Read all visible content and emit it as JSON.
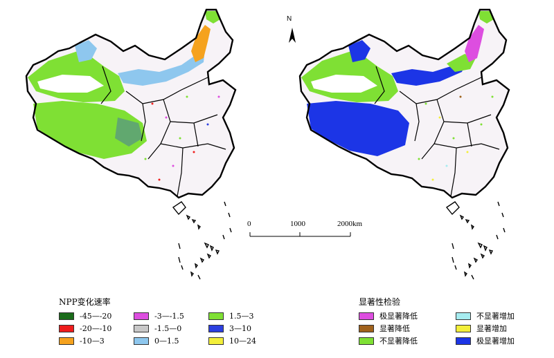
{
  "compass": {
    "label": "N",
    "icon": "north-arrow-icon"
  },
  "scale_bar": {
    "ticks": [
      "0",
      "1000",
      "2000km"
    ]
  },
  "left_map": {
    "content": "npp-change-rate",
    "regions": [
      {
        "area": "northwest",
        "class": "1.5—3"
      },
      {
        "area": "altai",
        "class": "0—1.5"
      },
      {
        "area": "tibet",
        "class": "1.5—3"
      },
      {
        "area": "hulunbuir",
        "class": "-10—3"
      },
      {
        "area": "inner-mongolia",
        "class": "0—1.5"
      }
    ]
  },
  "right_map": {
    "content": "significance-test",
    "regions": [
      {
        "area": "tibet",
        "class": "极显著增加"
      },
      {
        "area": "hulunbuir",
        "class": "极显著降低"
      },
      {
        "area": "northwest",
        "class": "不显著降低"
      },
      {
        "area": "inner-mongolia",
        "class": "极显著增加"
      }
    ]
  },
  "legend_npp": {
    "title": "NPP变化速率",
    "items": [
      {
        "label": "-45—-20",
        "color": "#1a6b1a"
      },
      {
        "label": "-20—-10",
        "color": "#ee1c1c"
      },
      {
        "label": "-10—3",
        "color": "#f5a21e"
      },
      {
        "label": "-3—-1.5",
        "color": "#dd4ee0"
      },
      {
        "label": "-1.5—0",
        "color": "#c8c8c8"
      },
      {
        "label": "0—1.5",
        "color": "#8ec7ee"
      },
      {
        "label": "1.5—3",
        "color": "#7fe034"
      },
      {
        "label": "3—10",
        "color": "#2c3fe0"
      },
      {
        "label": "10—24",
        "color": "#f3ef3a"
      }
    ]
  },
  "legend_sig": {
    "title": "显著性检验",
    "items": [
      {
        "label": "极显著降低",
        "color": "#dd4ee0"
      },
      {
        "label": "显著降低",
        "color": "#a0621c"
      },
      {
        "label": "不显著降低",
        "color": "#7fe034"
      },
      {
        "label": "不显著增加",
        "color": "#a6ecf0"
      },
      {
        "label": "显著增加",
        "color": "#f3ef3a"
      },
      {
        "label": "极显著增加",
        "color": "#1c35e6"
      }
    ]
  }
}
